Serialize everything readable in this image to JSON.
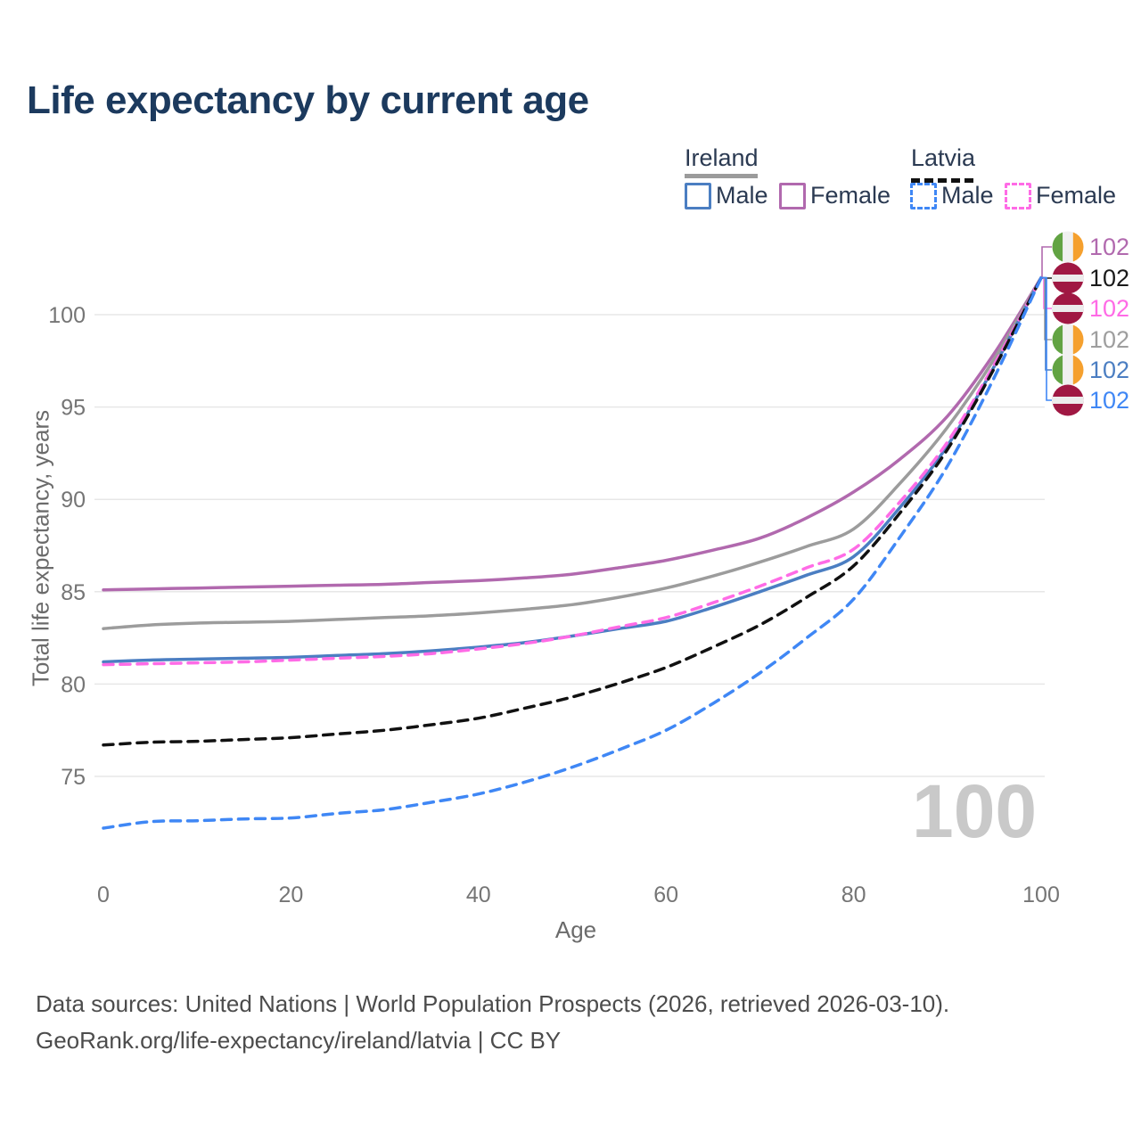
{
  "title": "Life expectancy by current age",
  "legend": {
    "groups": [
      {
        "country": "Ireland",
        "line_style": "solid",
        "underline_color": "#9b9b9b",
        "items": [
          {
            "label": "Male",
            "color": "#4b7ec2",
            "dashed": false
          },
          {
            "label": "Female",
            "color": "#b169ae",
            "dashed": false
          }
        ]
      },
      {
        "country": "Latvia",
        "line_style": "dashed",
        "underline_color": "#111111",
        "items": [
          {
            "label": "Male",
            "color": "#3f87f5",
            "dashed": true
          },
          {
            "label": "Female",
            "color": "#ff6be6",
            "dashed": true
          }
        ]
      }
    ]
  },
  "watermark": "100",
  "footer": {
    "line1": "Data sources: United Nations | World Population Prospects (2026, retrieved 2026-03-10).",
    "line2": "GeoRank.org/life-expectancy/ireland/latvia | CC BY"
  },
  "chart_data": {
    "type": "line",
    "title": "Life expectancy by current age",
    "xlabel": "Age",
    "ylabel": "Total life expectancy, years",
    "x_ticks": [
      0,
      20,
      40,
      60,
      80,
      100
    ],
    "y_ticks": [
      75,
      80,
      85,
      90,
      95,
      100
    ],
    "xlim": [
      0,
      100
    ],
    "ylim": [
      72,
      102
    ],
    "grid": "horizontal",
    "legend_position": "top-right",
    "x": [
      0,
      5,
      10,
      15,
      20,
      25,
      30,
      35,
      40,
      45,
      50,
      55,
      60,
      65,
      70,
      75,
      80,
      85,
      90,
      95,
      100
    ],
    "series": [
      {
        "name": "Ireland Female",
        "country": "Ireland",
        "sex": "Female",
        "color": "#b169ae",
        "dashed": false,
        "values": [
          85.1,
          85.15,
          85.2,
          85.25,
          85.3,
          85.35,
          85.4,
          85.5,
          85.6,
          85.75,
          85.95,
          86.3,
          86.7,
          87.25,
          87.9,
          89.0,
          90.4,
          92.2,
          94.5,
          97.9,
          102
        ]
      },
      {
        "name": "Ireland",
        "country": "Ireland",
        "sex": "Both",
        "color": "#9c9c9c",
        "dashed": false,
        "values": [
          83.0,
          83.2,
          83.3,
          83.35,
          83.4,
          83.5,
          83.6,
          83.7,
          83.85,
          84.05,
          84.3,
          84.7,
          85.2,
          85.85,
          86.6,
          87.45,
          88.4,
          90.9,
          93.9,
          97.6,
          102
        ]
      },
      {
        "name": "Ireland Male",
        "country": "Ireland",
        "sex": "Male",
        "color": "#4b7ec2",
        "dashed": false,
        "values": [
          81.2,
          81.3,
          81.35,
          81.4,
          81.45,
          81.55,
          81.65,
          81.8,
          82.0,
          82.25,
          82.6,
          83.0,
          83.4,
          84.15,
          85.0,
          85.9,
          86.9,
          89.6,
          92.9,
          97.2,
          102
        ]
      },
      {
        "name": "Latvia Female",
        "country": "Latvia",
        "sex": "Female",
        "color": "#ff6be6",
        "dashed": true,
        "values": [
          81.05,
          81.1,
          81.15,
          81.2,
          81.3,
          81.4,
          81.5,
          81.65,
          81.9,
          82.2,
          82.6,
          83.1,
          83.6,
          84.4,
          85.3,
          86.3,
          87.3,
          89.9,
          93.1,
          97.3,
          102
        ]
      },
      {
        "name": "Latvia",
        "country": "Latvia",
        "sex": "Both",
        "color": "#111111",
        "dashed": true,
        "values": [
          76.7,
          76.85,
          76.9,
          77.0,
          77.1,
          77.3,
          77.5,
          77.8,
          78.15,
          78.7,
          79.3,
          80.05,
          80.9,
          82.0,
          83.2,
          84.7,
          86.4,
          89.3,
          92.7,
          97.1,
          102
        ]
      },
      {
        "name": "Latvia Male",
        "country": "Latvia",
        "sex": "Male",
        "color": "#3f87f5",
        "dashed": true,
        "values": [
          72.2,
          72.55,
          72.6,
          72.7,
          72.75,
          73.0,
          73.2,
          73.6,
          74.05,
          74.7,
          75.5,
          76.45,
          77.5,
          78.95,
          80.6,
          82.5,
          84.6,
          88.0,
          91.8,
          96.6,
          102
        ]
      }
    ],
    "end_labels": [
      {
        "series": "Ireland Female",
        "value": "102",
        "color": "#b169ae",
        "flag": "ireland"
      },
      {
        "series": "Latvia",
        "value": "102",
        "color": "#1a1a1a",
        "flag": "latvia"
      },
      {
        "series": "Latvia Female",
        "value": "102",
        "color": "#ff6be6",
        "flag": "latvia"
      },
      {
        "series": "Ireland",
        "value": "102",
        "color": "#9e9e9e",
        "flag": "ireland"
      },
      {
        "series": "Ireland Male",
        "value": "102",
        "color": "#4b7ec2",
        "flag": "ireland"
      },
      {
        "series": "Latvia Male",
        "value": "102",
        "color": "#3f87f5",
        "flag": "latvia"
      }
    ],
    "flag_colors": {
      "ireland": {
        "left": "#62a343",
        "middle": "#f0f0f0",
        "right": "#f5a02e"
      },
      "latvia": {
        "band": "#a01843",
        "stripe": "#ececec"
      }
    }
  }
}
